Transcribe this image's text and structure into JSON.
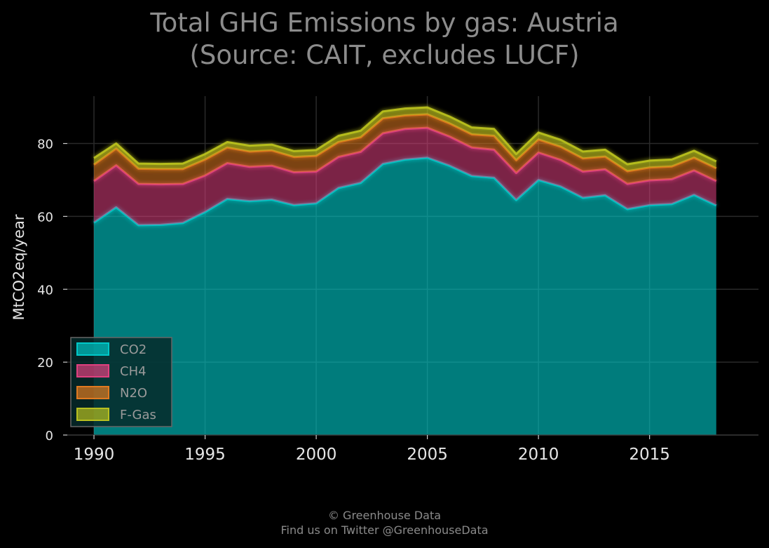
{
  "chart_data": {
    "type": "area",
    "stacked": true,
    "title": "Total GHG Emissions by gas: Austria",
    "subtitle": "(Source: CAIT, excludes LUCF)",
    "xlabel": "",
    "ylabel": "MtCO2eq/year",
    "xlim": [
      1988.8,
      2019.9
    ],
    "ylim": [
      0,
      93
    ],
    "x_ticks": [
      1990,
      1995,
      2000,
      2005,
      2010,
      2015
    ],
    "y_ticks": [
      0,
      20,
      40,
      60,
      80
    ],
    "grid": true,
    "legend_position": "lower-left",
    "x": [
      1990,
      1991,
      1992,
      1993,
      1994,
      1995,
      1996,
      1997,
      1998,
      1999,
      2000,
      2001,
      2002,
      2003,
      2004,
      2005,
      2006,
      2007,
      2008,
      2009,
      2010,
      2011,
      2012,
      2013,
      2014,
      2015,
      2016,
      2017,
      2018
    ],
    "series": [
      {
        "name": "CO2",
        "color": "#00c8c8",
        "values": [
          58.3,
          62.5,
          57.6,
          57.7,
          58.2,
          61.2,
          64.8,
          64.2,
          64.6,
          63.1,
          63.6,
          67.8,
          69.2,
          74.4,
          75.6,
          76.1,
          73.9,
          71.1,
          70.6,
          64.5,
          70.0,
          68.2,
          65.1,
          65.8,
          62.0,
          63.1,
          63.4,
          65.9,
          63.0
        ]
      },
      {
        "name": "CH4",
        "color": "#e0407f",
        "values": [
          11.4,
          11.5,
          11.3,
          11.1,
          10.7,
          10.0,
          9.8,
          9.4,
          9.3,
          9.0,
          8.7,
          8.5,
          8.5,
          8.4,
          8.4,
          8.2,
          8.0,
          7.8,
          7.7,
          7.4,
          7.5,
          7.3,
          7.2,
          7.1,
          6.9,
          6.8,
          6.8,
          6.7,
          6.7
        ]
      },
      {
        "name": "N2O",
        "color": "#e07a20",
        "values": [
          4.5,
          4.6,
          4.2,
          4.2,
          4.1,
          4.4,
          4.3,
          4.2,
          4.2,
          4.2,
          4.3,
          4.1,
          4.0,
          4.1,
          3.7,
          3.7,
          3.6,
          3.6,
          3.8,
          3.5,
          3.6,
          3.6,
          3.6,
          3.5,
          3.5,
          3.5,
          3.5,
          3.5,
          3.5
        ]
      },
      {
        "name": "F-Gas",
        "color": "#b8c020",
        "values": [
          1.8,
          1.4,
          1.4,
          1.4,
          1.5,
          1.5,
          1.5,
          1.6,
          1.6,
          1.6,
          1.6,
          1.7,
          1.8,
          1.9,
          1.9,
          1.9,
          1.9,
          1.9,
          1.9,
          1.7,
          1.9,
          1.9,
          1.9,
          1.9,
          1.9,
          1.9,
          1.9,
          1.9,
          1.9
        ]
      }
    ]
  },
  "footer": {
    "line1": "© Greenhouse Data",
    "line2": "Find us on Twitter @GreenhouseData"
  }
}
